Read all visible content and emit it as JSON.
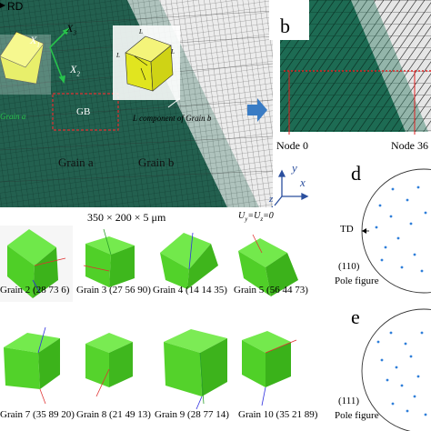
{
  "panel_a": {
    "rd_label": "RD",
    "x3_label": "X",
    "x3_sub": "3",
    "x1_label": "X",
    "x1_sub": "1",
    "x2_label": "X",
    "x2_sub": "2",
    "l_labels": [
      "L",
      "L",
      "L"
    ],
    "gb_label": "GB",
    "grain_a_label": "Grain a",
    "grain_a_small": "Grain a",
    "grain_b_label": "Grain b",
    "l_component_label": "L component of Grain b",
    "axis_y": "y",
    "axis_x": "x",
    "axis_z": "z"
  },
  "panel_b": {
    "letter": "b",
    "node0": "Node 0",
    "node3": "Node 36"
  },
  "dims": {
    "size_label": "350 × 200 × 5 μm",
    "bc_label": "U",
    "bc_sub1": "y",
    "bc_eq": "=U",
    "bc_sub2": "z",
    "bc_tail": "=0"
  },
  "grains": [
    {
      "caption": "Grain 2 (28 73 6)"
    },
    {
      "caption": "Grain 3 (27 56 90)"
    },
    {
      "caption": "Grain 4 (14 14 35)"
    },
    {
      "caption": "Grain 5 (56 44 73)"
    },
    {
      "caption": "Grain 7 (35 89 20)"
    },
    {
      "caption": "Grain 8 (21 49 13)"
    },
    {
      "caption": "Grain 9 (28 77 14)"
    },
    {
      "caption": "Grain 10 (35 21 89)"
    }
  ],
  "panel_d": {
    "letter": "d",
    "td_label": "TD",
    "index": "(110)",
    "pole_label": "Pole figure"
  },
  "panel_e": {
    "letter": "e",
    "index": "(111)",
    "pole_label": "Pole figure"
  },
  "colors": {
    "mesh_dark": "#1f5e4c",
    "mesh_light": "#e3e3e3",
    "cube_green": "#4fdc2a",
    "pole_dot": "#2f7fd9",
    "red_dash": "#e03030",
    "arrow_blue": "#3a7cc4"
  }
}
